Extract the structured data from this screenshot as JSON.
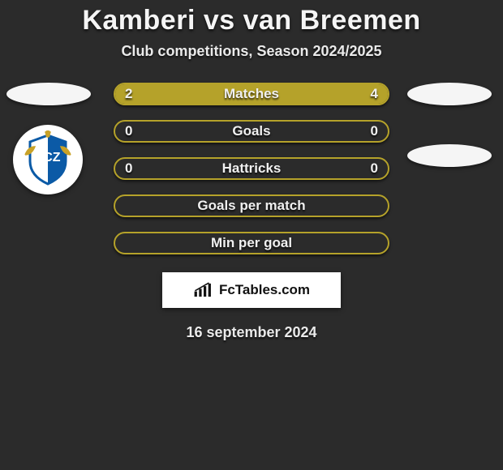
{
  "title": "Kamberi vs van Breemen",
  "subtitle": "Club competitions, Season 2024/2025",
  "date": "16 september 2024",
  "brand": "FcTables.com",
  "colors": {
    "accent": "#b5a22a",
    "background": "#2b2b2b",
    "text": "#f0f0f0"
  },
  "bars": [
    {
      "label": "Matches",
      "left": "2",
      "right": "4",
      "left_pct": 33,
      "right_pct": 67,
      "show_values": true,
      "show_fill": true
    },
    {
      "label": "Goals",
      "left": "0",
      "right": "0",
      "left_pct": 0,
      "right_pct": 0,
      "show_values": true,
      "show_fill": false
    },
    {
      "label": "Hattricks",
      "left": "0",
      "right": "0",
      "left_pct": 0,
      "right_pct": 0,
      "show_values": true,
      "show_fill": false
    },
    {
      "label": "Goals per match",
      "left": "",
      "right": "",
      "left_pct": 0,
      "right_pct": 0,
      "show_values": false,
      "show_fill": false
    },
    {
      "label": "Min per goal",
      "left": "",
      "right": "",
      "left_pct": 0,
      "right_pct": 0,
      "show_values": false,
      "show_fill": false
    }
  ],
  "left_player": {
    "flag_label": "player-flag-1",
    "club_label": "club-badge-fcz"
  },
  "right_player": {
    "flag_label": "player-flag-2"
  }
}
